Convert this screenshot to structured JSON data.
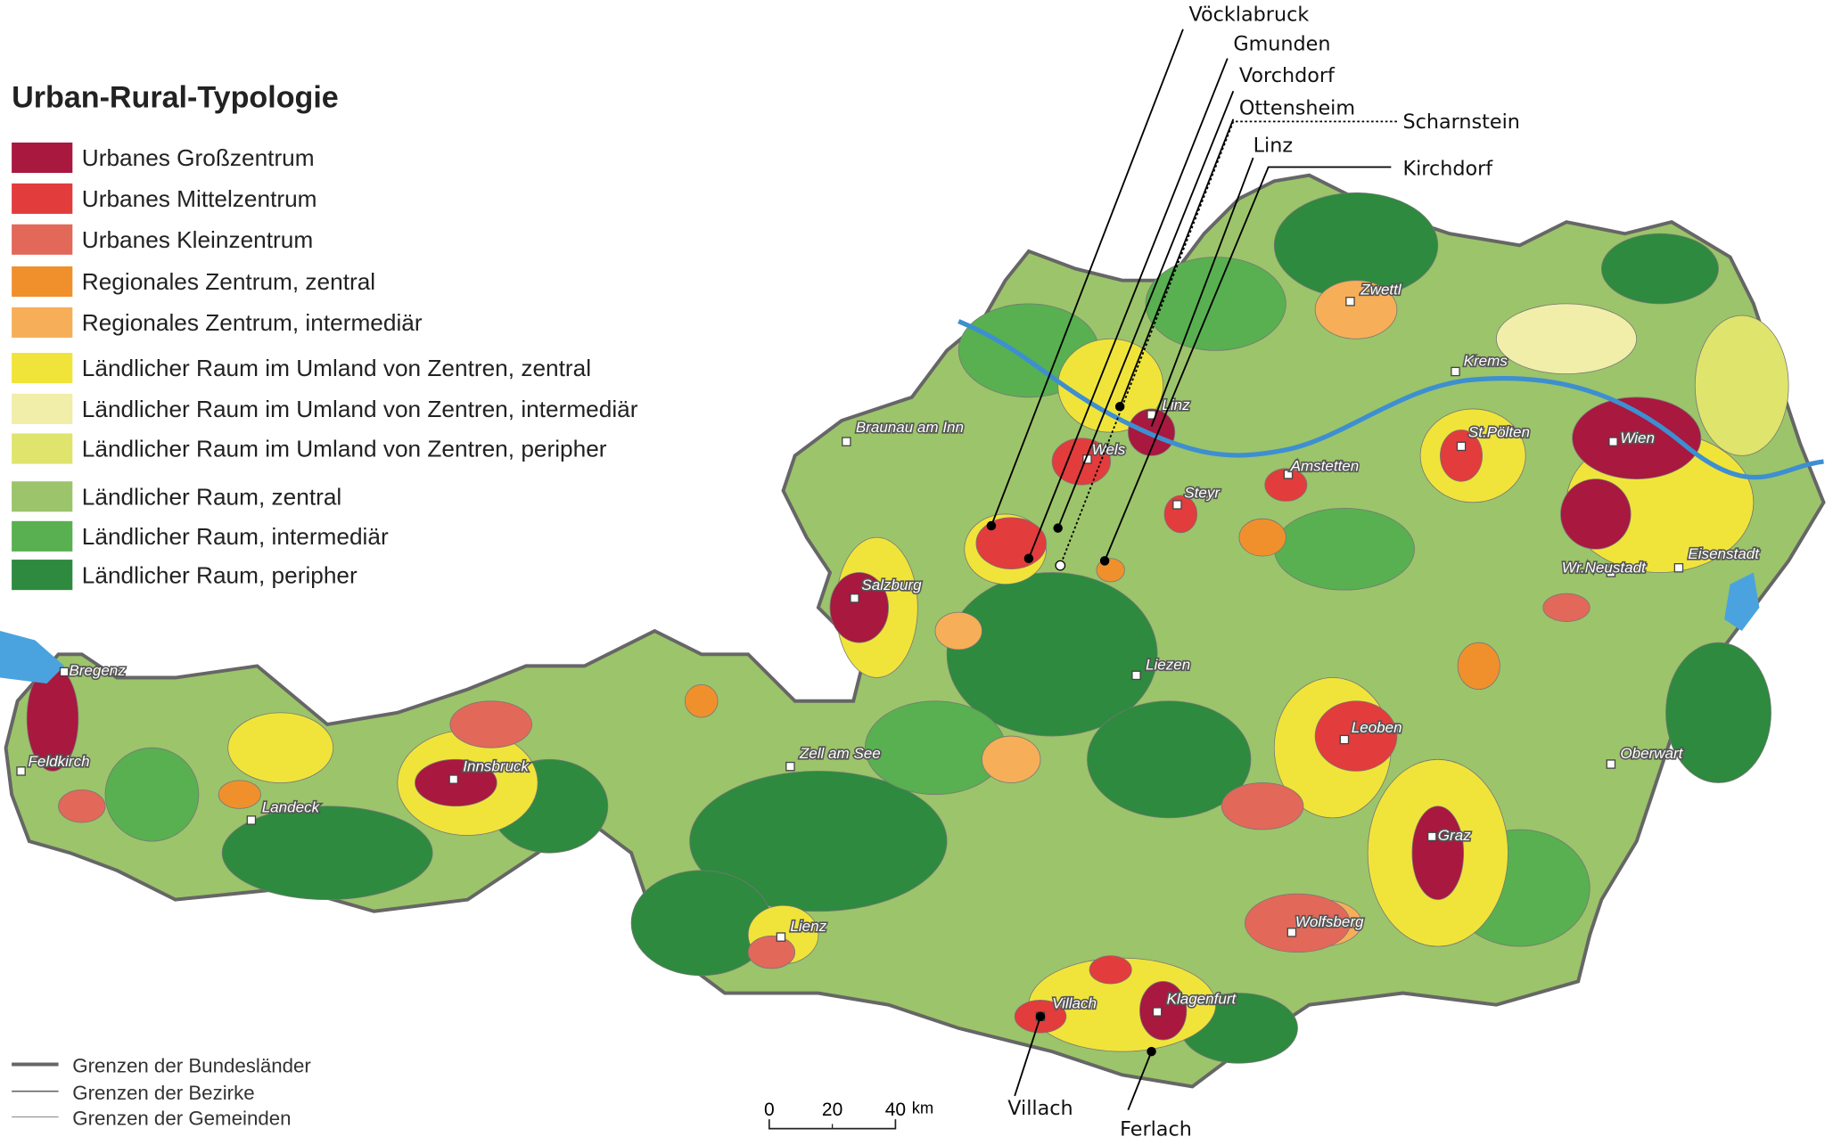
{
  "title": "Urban-Rural-Typologie",
  "legend": [
    {
      "label": "Urbanes Großzentrum",
      "color": "#a8183f"
    },
    {
      "label": "Urbanes Mittelzentrum",
      "color": "#e23c3c"
    },
    {
      "label": "Urbanes Kleinzentrum",
      "color": "#e2685a"
    },
    {
      "label": "Regionales Zentrum, zentral",
      "color": "#f0902c"
    },
    {
      "label": "Regionales Zentrum, intermediär",
      "color": "#f6ae58"
    },
    {
      "label": "Ländlicher Raum im Umland von Zentren, zentral",
      "color": "#f0e43a"
    },
    {
      "label": "Ländlicher Raum im Umland von Zentren, intermediär",
      "color": "#f0eea8"
    },
    {
      "label": "Ländlicher Raum im Umland von Zentren, peripher",
      "color": "#dfe46c"
    },
    {
      "label": "Ländlicher Raum, zentral",
      "color": "#9cc46a"
    },
    {
      "label": "Ländlicher Raum, intermediär",
      "color": "#58b050"
    },
    {
      "label": "Ländlicher Raum, peripher",
      "color": "#2e8a3e"
    }
  ],
  "cities": [
    "Bregenz",
    "Feldkirch",
    "Landeck",
    "Innsbruck",
    "Braunau am Inn",
    "Salzburg",
    "Zell am See",
    "Lienz",
    "Villach",
    "Klagenfurt",
    "Wolfsberg",
    "Graz",
    "Leoben",
    "Liezen",
    "Wels",
    "Linz",
    "Steyr",
    "Amstetten",
    "Zwettl",
    "Krems",
    "St.Pölten",
    "Wien",
    "Wr.Neustadt",
    "Eisenstadt",
    "Oberwart"
  ],
  "callouts": [
    "Vöcklabruck",
    "Gmunden",
    "Vorchdorf",
    "Ottensheim",
    "Scharnstein",
    "Linz",
    "Kirchdorf",
    "Villach",
    "Ferlach"
  ],
  "boundaries": [
    "Grenzen der Bundesländer",
    "Grenzen der Bezirke",
    "Grenzen der Gemeinden"
  ],
  "scale": {
    "ticks": [
      "0",
      "20",
      "40"
    ],
    "unit": "km"
  }
}
